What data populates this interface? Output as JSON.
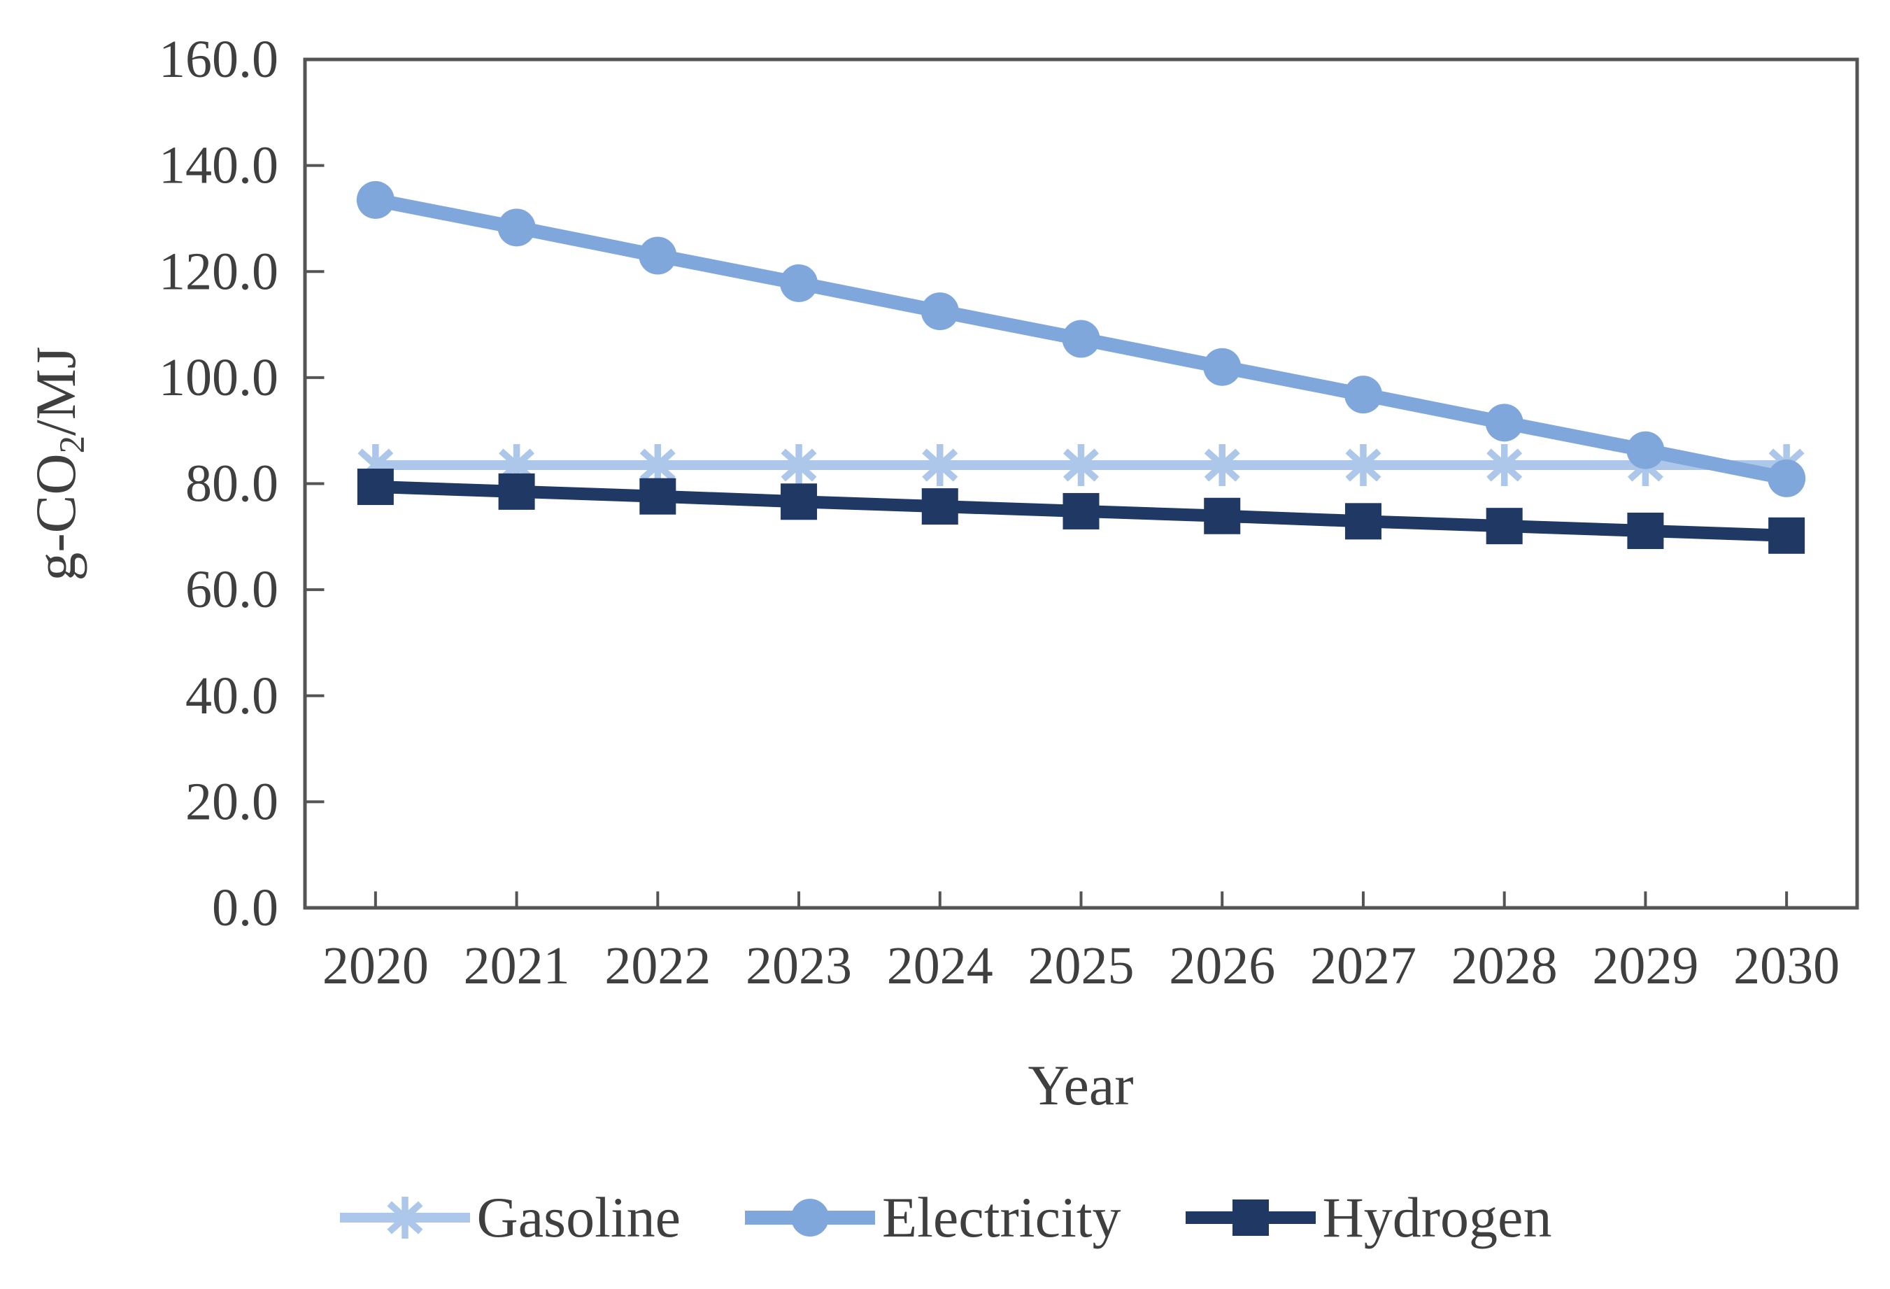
{
  "chart_data": {
    "type": "line",
    "title": "",
    "xlabel": "Year",
    "ylabel": "g-CO2/MJ",
    "ylabel_parts": {
      "pre": "g-CO",
      "sub": "2",
      "post": "/MJ"
    },
    "x_categories": [
      "2020",
      "2021",
      "2022",
      "2023",
      "2024",
      "2025",
      "2026",
      "2027",
      "2028",
      "2029",
      "2030"
    ],
    "ylim": [
      0,
      160
    ],
    "yticks": [
      0,
      20,
      40,
      60,
      80,
      100,
      120,
      140,
      160
    ],
    "ytick_labels": [
      "0.0",
      "20.0",
      "40.0",
      "60.0",
      "80.0",
      "100.0",
      "120.0",
      "140.0",
      "160.0"
    ],
    "grid": false,
    "legend_position": "bottom",
    "axis_color": "#545454",
    "text_color": "#3F3F3F",
    "background_color": "#FFFFFF",
    "series": [
      {
        "name": "Gasoline",
        "marker": "asterisk",
        "color": "#ACC7E9",
        "values": [
          83.5,
          83.5,
          83.5,
          83.5,
          83.5,
          83.5,
          83.5,
          83.5,
          83.5,
          83.5,
          83.5
        ]
      },
      {
        "name": "Electricity",
        "marker": "circle",
        "color": "#7FA7DB",
        "values": [
          133.5,
          128.3,
          123.0,
          117.8,
          112.5,
          107.3,
          102.0,
          96.8,
          91.5,
          86.3,
          81.0
        ]
      },
      {
        "name": "Hydrogen",
        "marker": "square",
        "color": "#1F3864",
        "values": [
          79.4,
          78.5,
          77.6,
          76.6,
          75.7,
          74.8,
          73.9,
          72.9,
          72.0,
          71.1,
          70.2
        ]
      }
    ]
  }
}
